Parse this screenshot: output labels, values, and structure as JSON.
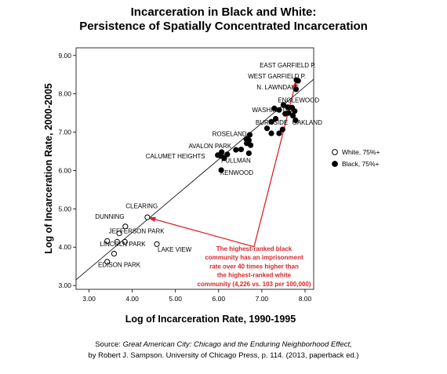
{
  "chart_data": {
    "type": "scatter",
    "title": "Incarceration in Black and White:",
    "subtitle": "Persistence of Spatially Concentrated Incarceration",
    "xlabel": "Log of Incarceration Rate, 1990-1995",
    "ylabel": "Log of Incarceration Rate, 2000-2005",
    "xlim": [
      2.7,
      8.2
    ],
    "ylim": [
      2.9,
      9.2
    ],
    "x_ticks": [
      "3.00",
      "4.00",
      "5.00",
      "6.00",
      "7.00",
      "8.00"
    ],
    "x_tick_values": [
      3,
      4,
      5,
      6,
      7,
      8
    ],
    "y_ticks": [
      "3.00",
      "4.00",
      "5.00",
      "6.00",
      "7.00",
      "8.00",
      "9.00"
    ],
    "y_tick_values": [
      3,
      4,
      5,
      6,
      7,
      8,
      9
    ],
    "grid": false,
    "legend_position": "right",
    "fit_line": {
      "x": [
        2.7,
        8.2
      ],
      "y": [
        3.15,
        8.38
      ]
    },
    "series": [
      {
        "name": "White, 75%+",
        "marker": "open-circle",
        "points": [
          {
            "x": 3.42,
            "y": 3.62
          },
          {
            "x": 3.58,
            "y": 3.83
          },
          {
            "x": 3.42,
            "y": 4.16
          },
          {
            "x": 3.65,
            "y": 4.14
          },
          {
            "x": 3.83,
            "y": 4.14
          },
          {
            "x": 3.7,
            "y": 4.36
          },
          {
            "x": 3.84,
            "y": 4.54
          },
          {
            "x": 4.57,
            "y": 4.08
          },
          {
            "x": 4.35,
            "y": 4.78
          }
        ]
      },
      {
        "name": "Black, 75%+",
        "marker": "filled-circle",
        "points": [
          {
            "x": 7.8,
            "y": 8.36
          },
          {
            "x": 7.84,
            "y": 8.34
          },
          {
            "x": 7.79,
            "y": 8.12
          },
          {
            "x": 7.5,
            "y": 7.71
          },
          {
            "x": 7.6,
            "y": 7.65
          },
          {
            "x": 7.7,
            "y": 7.64
          },
          {
            "x": 7.62,
            "y": 7.5
          },
          {
            "x": 7.76,
            "y": 7.55
          },
          {
            "x": 7.72,
            "y": 7.43
          },
          {
            "x": 7.29,
            "y": 7.62
          },
          {
            "x": 7.4,
            "y": 7.58
          },
          {
            "x": 7.32,
            "y": 7.35
          },
          {
            "x": 7.54,
            "y": 7.48
          },
          {
            "x": 7.22,
            "y": 7.27
          },
          {
            "x": 7.48,
            "y": 7.07
          },
          {
            "x": 7.12,
            "y": 7.1
          },
          {
            "x": 7.22,
            "y": 6.97
          },
          {
            "x": 7.4,
            "y": 6.97
          },
          {
            "x": 7.78,
            "y": 7.31
          },
          {
            "x": 6.72,
            "y": 6.93
          },
          {
            "x": 6.64,
            "y": 6.82
          },
          {
            "x": 6.7,
            "y": 6.79
          },
          {
            "x": 6.65,
            "y": 6.71
          },
          {
            "x": 6.74,
            "y": 6.66
          },
          {
            "x": 6.4,
            "y": 6.54
          },
          {
            "x": 6.52,
            "y": 6.55
          },
          {
            "x": 6.7,
            "y": 6.45
          },
          {
            "x": 6.07,
            "y": 6.48
          },
          {
            "x": 5.98,
            "y": 6.4
          },
          {
            "x": 6.05,
            "y": 6.38
          },
          {
            "x": 6.2,
            "y": 6.42
          },
          {
            "x": 6.13,
            "y": 6.32
          },
          {
            "x": 6.06,
            "y": 6.01
          }
        ]
      }
    ],
    "annotations": [
      {
        "text": "EAST GARFIELD  P.",
        "x": 7.6,
        "y": 8.69
      },
      {
        "text": "WEST GARFIELD  P.",
        "x": 7.35,
        "y": 8.4
      },
      {
        "text": "N. LAWNDALE",
        "x": 7.37,
        "y": 8.12
      },
      {
        "text": "ENGLEWOOD",
        "x": 7.85,
        "y": 7.78
      },
      {
        "text": "WASHINGTON",
        "x": 7.27,
        "y": 7.52
      },
      {
        "text": "BURNSIDE",
        "x": 7.23,
        "y": 7.2
      },
      {
        "text": "OAKLAND",
        "x": 8.05,
        "y": 7.2
      },
      {
        "text": "ROSELAND",
        "x": 6.25,
        "y": 6.9
      },
      {
        "text": "AVALON PARK",
        "x": 5.8,
        "y": 6.58
      },
      {
        "text": "CALUMET  HEIGHTS",
        "x": 5.0,
        "y": 6.32
      },
      {
        "text": "PULLMAN",
        "x": 6.4,
        "y": 6.2
      },
      {
        "text": "KENWOOD",
        "x": 6.42,
        "y": 5.89
      },
      {
        "text": "CLEARING",
        "x": 4.22,
        "y": 5.02
      },
      {
        "text": "DUNNING",
        "x": 3.48,
        "y": 4.74
      },
      {
        "text": "JEFFERSON  PARK",
        "x": 4.1,
        "y": 4.36
      },
      {
        "text": "LINCOLN  PARK",
        "x": 3.78,
        "y": 4.02
      },
      {
        "text": "LAKE VIEW",
        "x": 4.98,
        "y": 3.88
      },
      {
        "text": "EDISON  PARK",
        "x": 3.7,
        "y": 3.48
      }
    ],
    "callout": {
      "lines": [
        "The highest-ranked black",
        "community has an imprisonment",
        "rate over 40 times higher than",
        "the highest-ranked white",
        "community (4,226 vs. 103 per 100,000)"
      ],
      "color": "#d8262a",
      "vertex": {
        "x": 6.82,
        "y": 4.01
      },
      "targets": [
        {
          "x": 4.35,
          "y": 4.78
        },
        {
          "x": 7.8,
          "y": 8.36
        }
      ]
    },
    "source": {
      "prefix": "Source: ",
      "work": "Great American City: Chicago and the Enduring Neighborhood Effect,",
      "line2": "by Robert J. Sampson. University of Chicago Press, p. 114. (2013, paperback ed.)"
    }
  }
}
